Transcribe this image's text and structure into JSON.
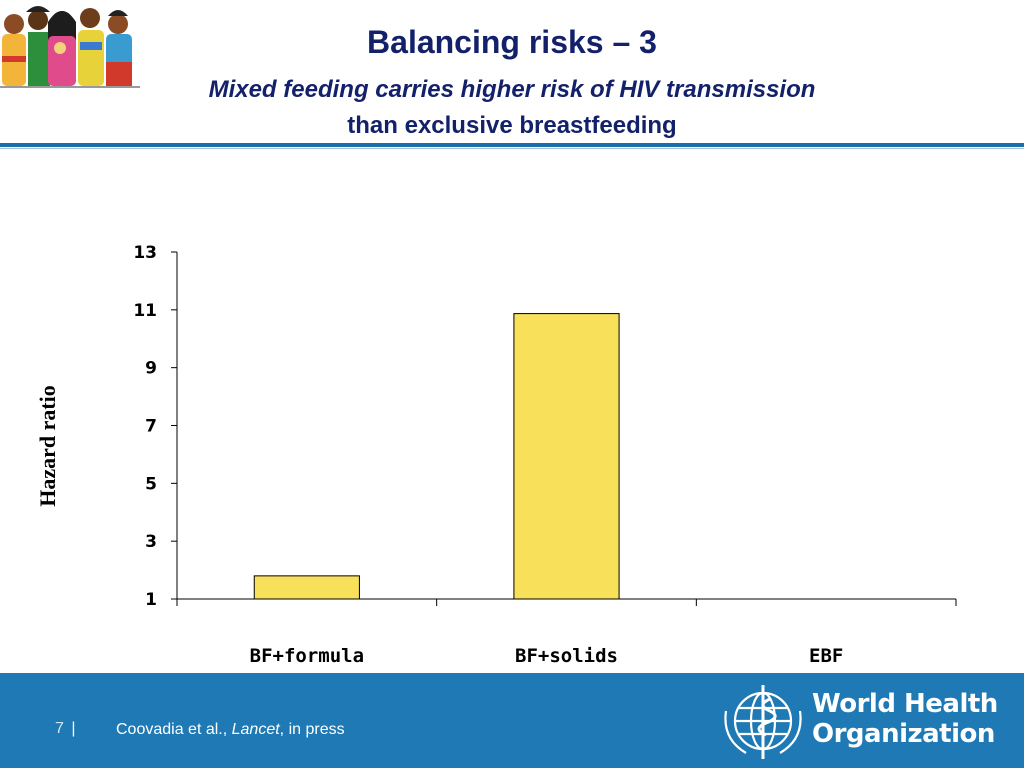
{
  "header": {
    "title": "Balancing risks – 3",
    "subtitle_line1": "Mixed feeding carries higher risk of HIV transmission",
    "subtitle_line2": "than exclusive breastfeeding"
  },
  "chart_data": {
    "type": "bar",
    "categories": [
      "BF+formula",
      "BF+solids",
      "EBF"
    ],
    "values": [
      1.8,
      10.87,
      1.0
    ],
    "ylabel": "Hazard ratio",
    "ylim": [
      1,
      13
    ],
    "yticks": [
      1,
      3,
      5,
      7,
      9,
      11,
      13
    ],
    "grid": false,
    "bar_color": "#f9e05a",
    "bar_stroke": "#000000"
  },
  "footer": {
    "page_number": "7",
    "separator": "|",
    "citation_prefix": "Coovadia et al., ",
    "citation_journal": "Lancet",
    "citation_suffix": ", in press",
    "org_line1": "World Health",
    "org_line2": "Organization"
  },
  "colors": {
    "title": "#13216b",
    "footer_bg": "#1f79b5",
    "rule": "#1a6fa8"
  }
}
